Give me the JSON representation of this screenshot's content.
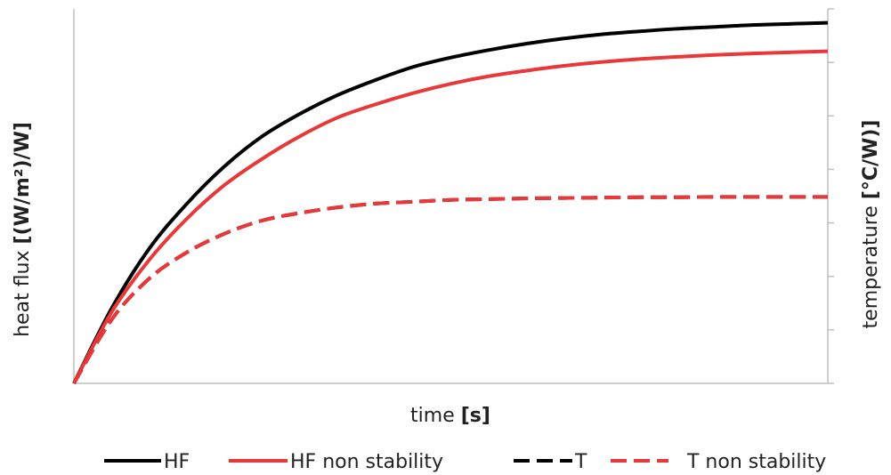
{
  "chart_data": {
    "type": "line",
    "title": "",
    "xlabel": {
      "text": "time ",
      "unit": "[s]"
    },
    "ylabel_left": {
      "text": "heat flux ",
      "unit": "[(W/m²)/W]"
    },
    "ylabel_right": {
      "text": "temperature ",
      "unit": "[°C/W)]"
    },
    "tick_labels_visible": false,
    "x_range": [
      0,
      1
    ],
    "y_range": [
      0,
      1
    ],
    "grid": false,
    "legend_position": "bottom",
    "series": [
      {
        "name": "HF",
        "color": "#000000",
        "style": "solid",
        "x": [
          0,
          0.05,
          0.1,
          0.15,
          0.2,
          0.25,
          0.3,
          0.35,
          0.4,
          0.45,
          0.5,
          0.55,
          0.6,
          0.65,
          0.7,
          0.75,
          0.8,
          0.85,
          0.9,
          0.95,
          1.0
        ],
        "y": [
          0,
          0.2,
          0.36,
          0.48,
          0.58,
          0.66,
          0.72,
          0.77,
          0.81,
          0.845,
          0.87,
          0.89,
          0.907,
          0.921,
          0.932,
          0.94,
          0.947,
          0.952,
          0.957,
          0.96,
          0.963
        ]
      },
      {
        "name": "HF non stability",
        "color": "#e8383a",
        "style": "solid",
        "x": [
          0,
          0.05,
          0.1,
          0.15,
          0.2,
          0.25,
          0.3,
          0.35,
          0.4,
          0.45,
          0.5,
          0.55,
          0.6,
          0.65,
          0.7,
          0.75,
          0.8,
          0.85,
          0.9,
          0.95,
          1.0
        ],
        "y": [
          0,
          0.19,
          0.33,
          0.44,
          0.53,
          0.6,
          0.66,
          0.71,
          0.745,
          0.775,
          0.8,
          0.82,
          0.835,
          0.848,
          0.858,
          0.866,
          0.872,
          0.877,
          0.881,
          0.884,
          0.887
        ]
      },
      {
        "name": "T",
        "color": "#000000",
        "style": "dashed",
        "x": [
          0,
          0.05,
          0.1,
          0.15,
          0.2,
          0.25,
          0.3,
          0.35,
          0.4,
          0.45,
          0.5,
          0.55,
          0.6,
          0.65,
          0.7,
          0.75,
          0.8,
          0.85,
          0.9,
          0.95,
          1.0
        ],
        "y": [
          0,
          0.17,
          0.28,
          0.35,
          0.4,
          0.435,
          0.455,
          0.47,
          0.48,
          0.485,
          0.49,
          0.492,
          0.494,
          0.495,
          0.496,
          0.497,
          0.497,
          0.498,
          0.498,
          0.498,
          0.498
        ]
      },
      {
        "name": "T non stability",
        "color": "#e8383a",
        "style": "dashed",
        "x": [
          0,
          0.05,
          0.1,
          0.15,
          0.2,
          0.25,
          0.3,
          0.35,
          0.4,
          0.45,
          0.5,
          0.55,
          0.6,
          0.65,
          0.7,
          0.75,
          0.8,
          0.85,
          0.9,
          0.95,
          1.0
        ],
        "y": [
          0,
          0.17,
          0.28,
          0.35,
          0.4,
          0.435,
          0.455,
          0.47,
          0.48,
          0.485,
          0.49,
          0.492,
          0.494,
          0.495,
          0.496,
          0.497,
          0.497,
          0.498,
          0.498,
          0.498,
          0.498
        ]
      }
    ]
  }
}
